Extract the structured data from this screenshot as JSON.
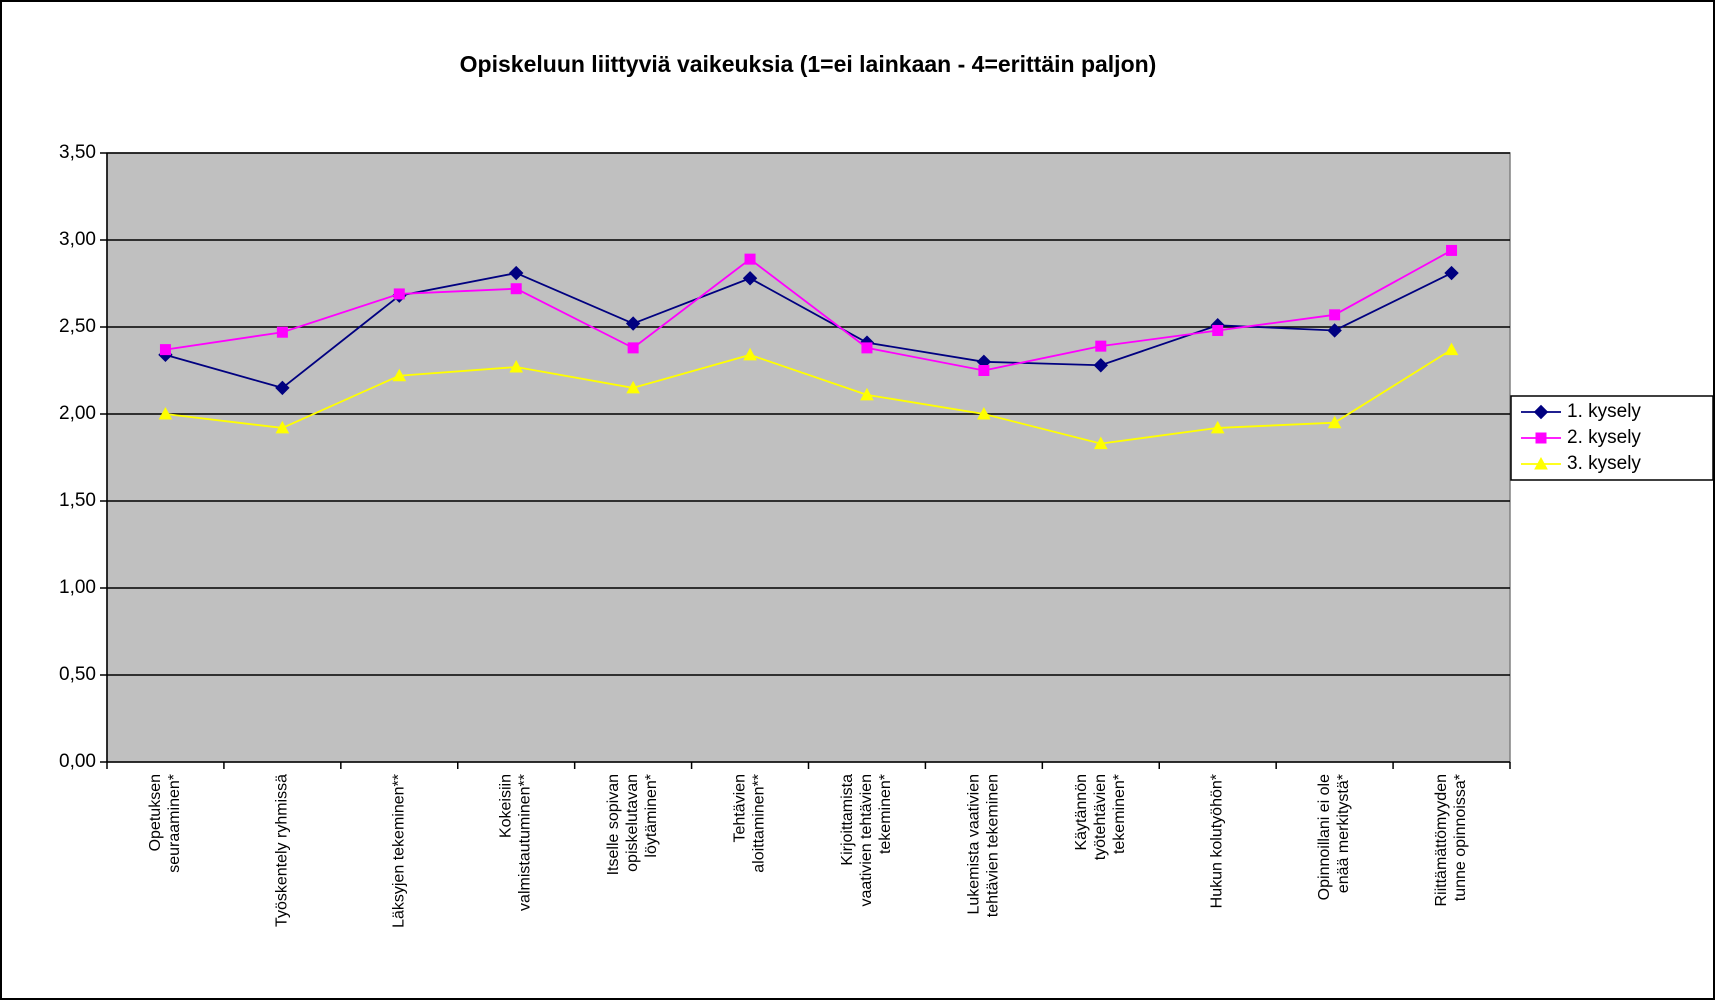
{
  "chart_data": {
    "type": "line",
    "title": "Opiskeluun liittyviä vaikeuksia (1=ei lainkaan - 4=erittäin paljon)",
    "categories": [
      "Opetuksen seuraaminen*",
      "Työskentely ryhmissä",
      "Läksyjen tekeminen**",
      "Kokeisiin valmistautuminen**",
      "Itselle sopivan opiskelutavan löytäminen*",
      "Tehtävien aloittaminen**",
      "Kirjoittamista vaativien tehtävien tekeminen*",
      "Lukemista vaativien tehtävien tekeminen",
      "Käytännön työtehtävien tekeminen*",
      "Hukun kolutyöhön*",
      "Opinnoillani ei ole enää merkitystä*",
      "Riittämättömyyden tunne opinnoissa*"
    ],
    "series": [
      {
        "name": "1. kysely",
        "color": "#000080",
        "marker": "diamond",
        "values": [
          2.34,
          2.15,
          2.68,
          2.81,
          2.52,
          2.78,
          2.41,
          2.3,
          2.28,
          2.51,
          2.48,
          2.81
        ]
      },
      {
        "name": "2. kysely",
        "color": "#ff00ff",
        "marker": "square",
        "values": [
          2.37,
          2.47,
          2.69,
          2.72,
          2.38,
          2.89,
          2.38,
          2.25,
          2.39,
          2.48,
          2.57,
          2.94
        ]
      },
      {
        "name": "3. kysely",
        "color": "#ffff00",
        "marker": "triangle",
        "values": [
          2.0,
          1.92,
          2.22,
          2.27,
          2.15,
          2.34,
          2.11,
          2.0,
          1.83,
          1.92,
          1.95,
          2.37
        ]
      }
    ],
    "ylim": [
      0,
      3.5
    ],
    "yticks": [
      {
        "value": 0,
        "label": "0,00"
      },
      {
        "value": 0.5,
        "label": "0,50"
      },
      {
        "value": 1,
        "label": "1,00"
      },
      {
        "value": 1.5,
        "label": "1,50"
      },
      {
        "value": 2,
        "label": "2,00"
      },
      {
        "value": 2.5,
        "label": "2,50"
      },
      {
        "value": 3,
        "label": "3,00"
      },
      {
        "value": 3.5,
        "label": "3,50"
      }
    ],
    "grid": true,
    "legend": "right",
    "plot_background": "#c0c0c0"
  }
}
